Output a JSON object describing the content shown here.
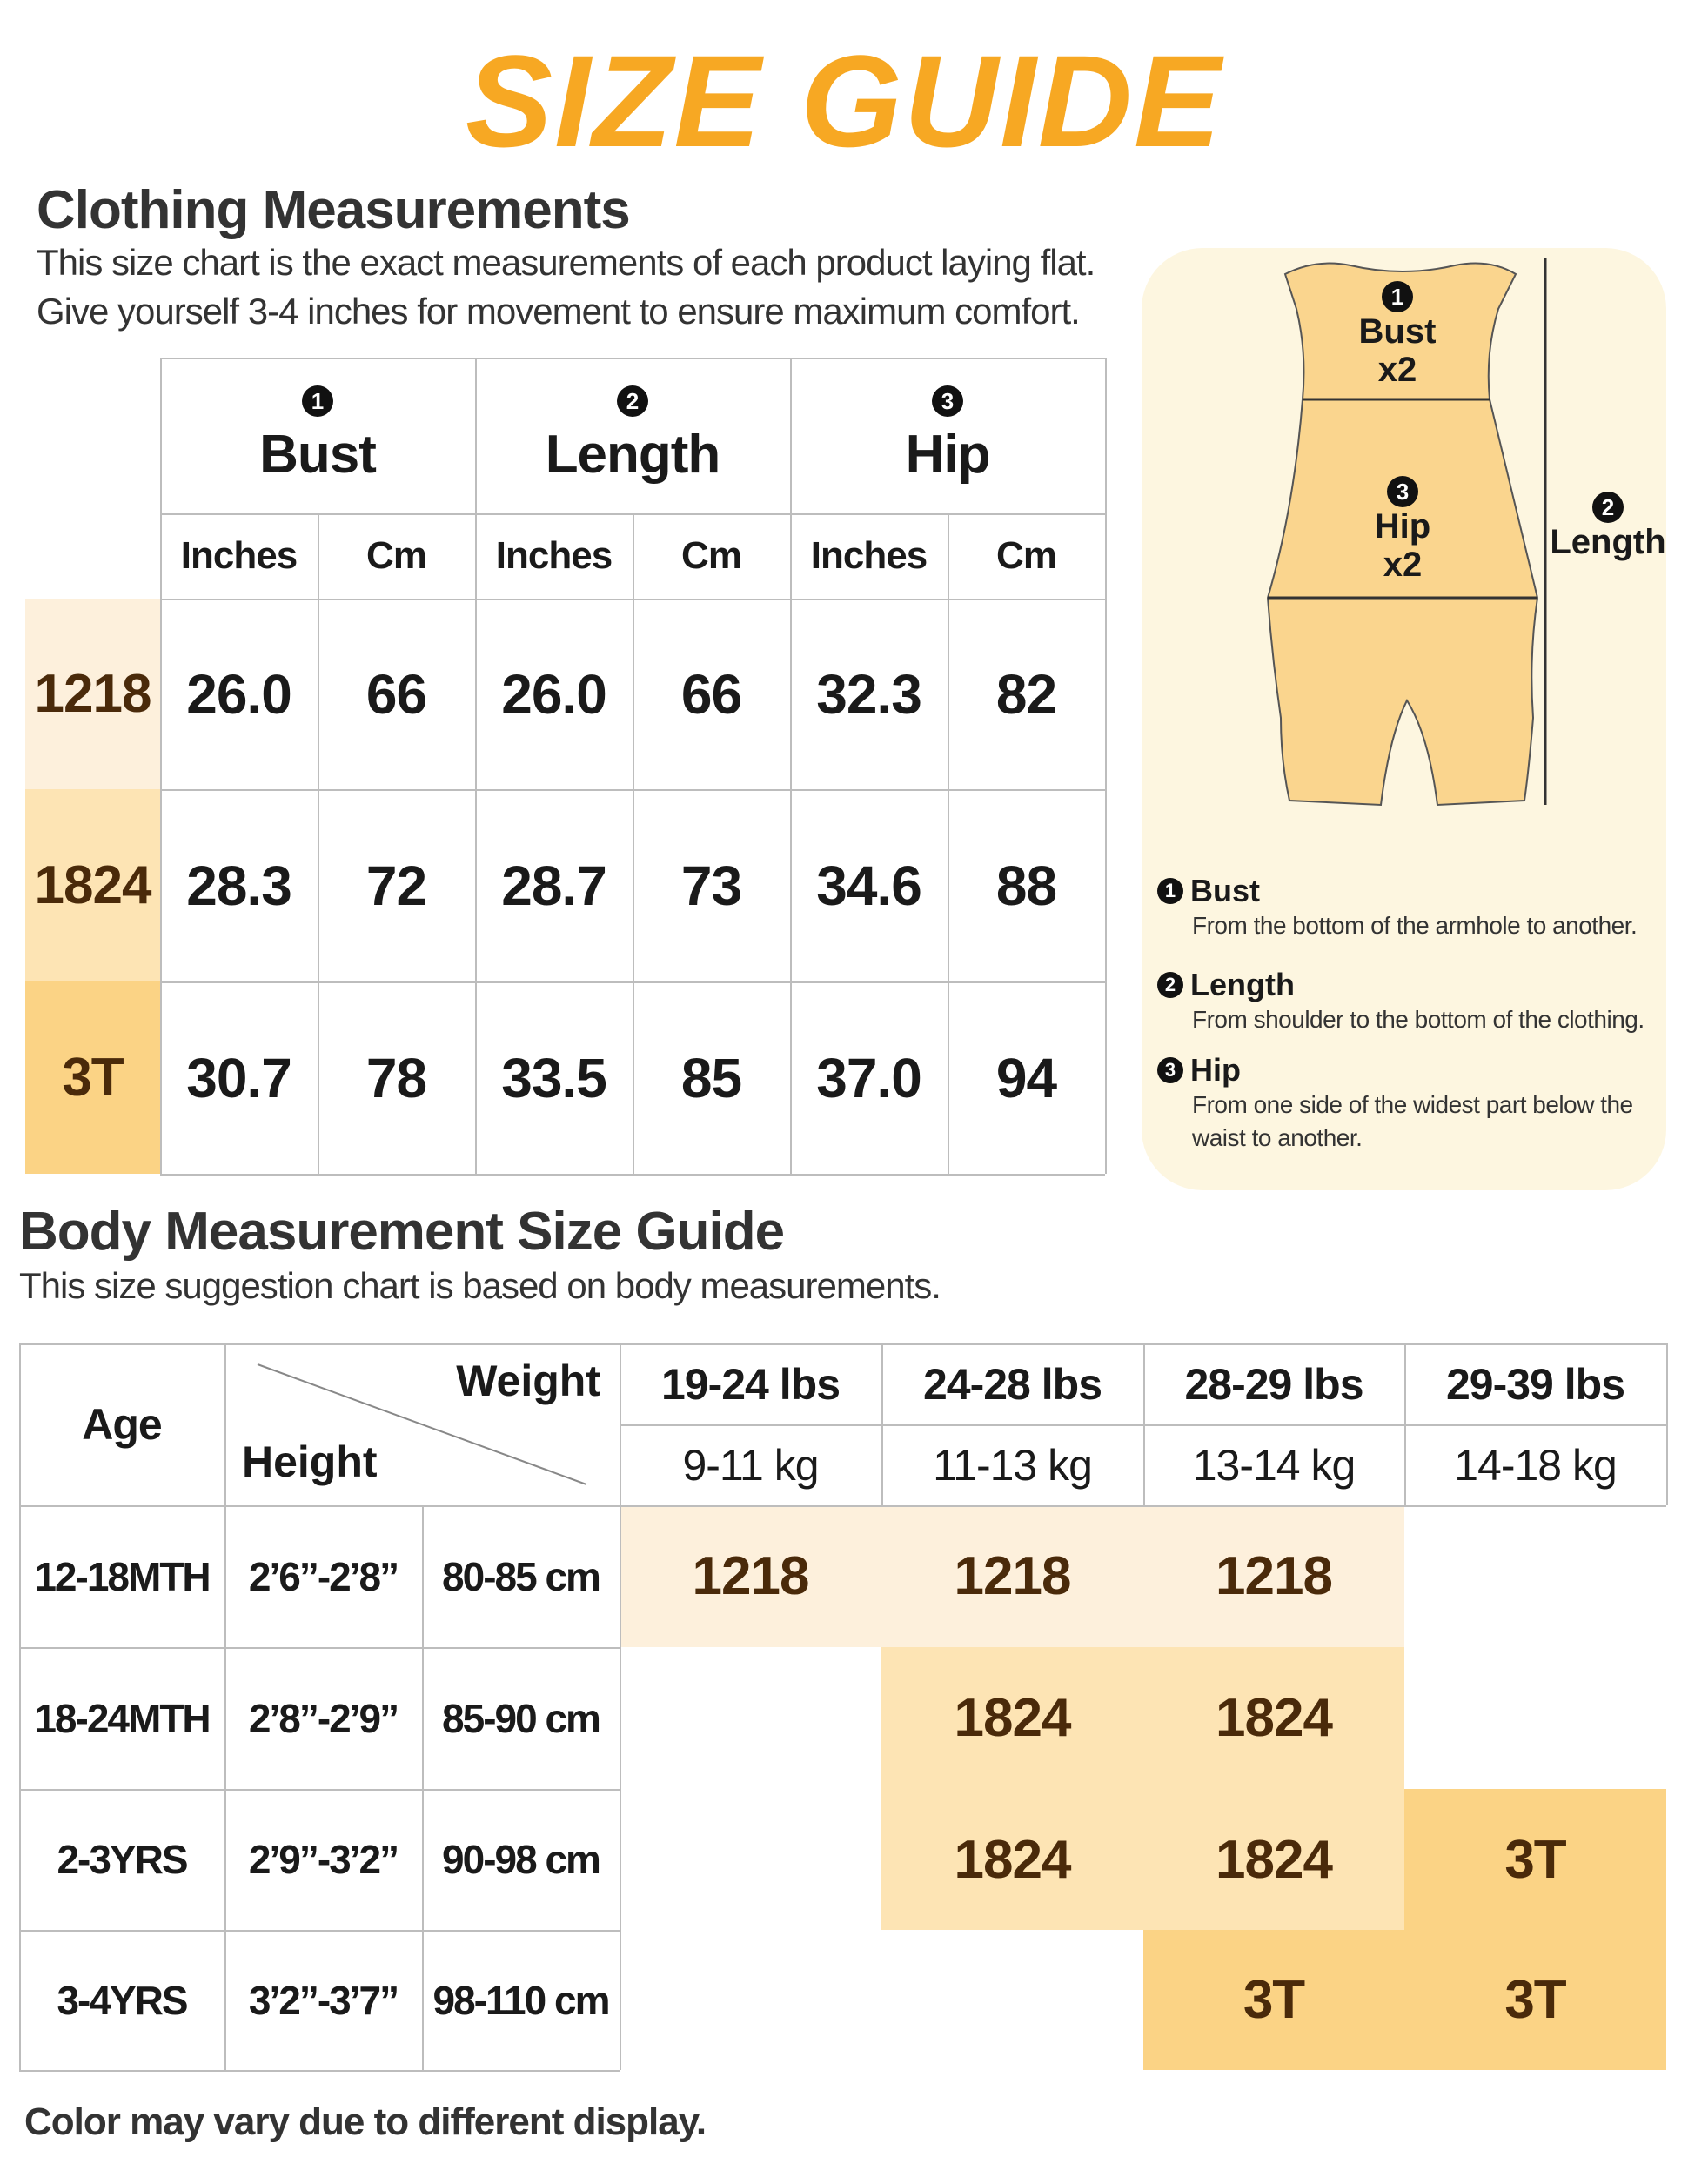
{
  "title": "SIZE GUIDE",
  "clothing": {
    "heading": "Clothing Measurements",
    "description": [
      "This size chart is the exact measurements of each product laying flat.",
      "Give yourself 3-4 inches for movement to ensure maximum comfort."
    ],
    "table": {
      "groups": [
        {
          "number": "1",
          "label": "Bust"
        },
        {
          "number": "2",
          "label": "Length"
        },
        {
          "number": "3",
          "label": "Hip"
        }
      ],
      "units": [
        "Inches",
        "Cm",
        "Inches",
        "Cm",
        "Inches",
        "Cm"
      ],
      "rows": [
        {
          "size": "1218",
          "values": [
            "26.0",
            "66",
            "26.0",
            "66",
            "32.3",
            "82"
          ]
        },
        {
          "size": "1824",
          "values": [
            "28.3",
            "72",
            "28.7",
            "73",
            "34.6",
            "88"
          ]
        },
        {
          "size": "3T",
          "values": [
            "30.7",
            "78",
            "33.5",
            "85",
            "37.0",
            "94"
          ]
        }
      ]
    }
  },
  "diagram": {
    "labels": [
      {
        "number": "1",
        "name": "Bust",
        "multiplier": "x2"
      },
      {
        "number": "3",
        "name": "Hip",
        "multiplier": "x2"
      },
      {
        "number": "2",
        "name": "Length"
      }
    ]
  },
  "notes": [
    {
      "number": "1",
      "title": "Bust",
      "text": "From the bottom of the armhole to another."
    },
    {
      "number": "2",
      "title": "Length",
      "text": "From shoulder to the bottom of the clothing."
    },
    {
      "number": "3",
      "title": "Hip",
      "text": "From one side of the widest part below the waist to another."
    }
  ],
  "body": {
    "heading": "Body Measurement Size Guide",
    "description": "This size suggestion chart is based on body measurements.",
    "table": {
      "corner": {
        "age": "Age",
        "weight": "Weight",
        "height": "Height"
      },
      "weights_lbs": [
        "19-24 lbs",
        "24-28 lbs",
        "28-29 lbs",
        "29-39 lbs"
      ],
      "weights_kg": [
        "9-11 kg",
        "11-13 kg",
        "13-14 kg",
        "14-18 kg"
      ],
      "rows": [
        {
          "age": "12-18MTH",
          "height_ft": "2’6”-2’8”",
          "height_cm": "80-85 cm",
          "sizes": [
            "1218",
            "1218",
            "1218",
            null
          ]
        },
        {
          "age": "18-24MTH",
          "height_ft": "2’8”-2’9”",
          "height_cm": "85-90 cm",
          "sizes": [
            null,
            "1824",
            "1824",
            null
          ]
        },
        {
          "age": "2-3YRS",
          "height_ft": "2’9”-3’2”",
          "height_cm": "90-98 cm",
          "sizes": [
            null,
            "1824",
            "1824",
            "3T"
          ]
        },
        {
          "age": "3-4YRS",
          "height_ft": "3’2”-3’7”",
          "height_cm": "98-110 cm",
          "sizes": [
            null,
            null,
            "3T",
            "3T"
          ]
        }
      ]
    }
  },
  "footer": "Color may vary due to different display."
}
